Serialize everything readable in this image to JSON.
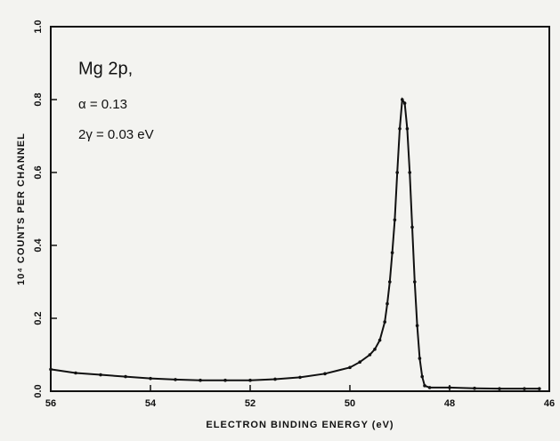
{
  "chart_data": {
    "type": "line",
    "y_label": "10⁴ COUNTS PER CHANNEL",
    "x_label": "ELECTRON BINDING ENERGY (eV)",
    "annotations": [
      "Mg 2p,",
      "α = 0.13",
      "2γ = 0.03 eV"
    ],
    "color": "#111111",
    "xlim": [
      56,
      46
    ],
    "xticks": [
      56,
      54,
      52,
      50,
      48,
      46
    ],
    "ylim": [
      0,
      1
    ],
    "yticks": [
      {
        "value": 0,
        "label": "0.0"
      },
      0.2,
      0.4,
      0.6,
      0.8,
      {
        "value": 1,
        "label": "1.0"
      }
    ],
    "x": [
      56,
      55.5,
      55,
      54.5,
      54,
      53.5,
      53,
      52.5,
      52,
      51.5,
      51,
      50.5,
      50,
      49.8,
      49.6,
      49.5,
      49.4,
      49.3,
      49.25,
      49.2,
      49.15,
      49.1,
      49.05,
      49.0,
      48.95,
      48.9,
      48.85,
      48.8,
      48.75,
      48.7,
      48.65,
      48.6,
      48.55,
      48.5,
      48.4,
      48,
      47.5,
      47,
      46.5,
      46.2
    ],
    "values": [
      0.06,
      0.05,
      0.045,
      0.04,
      0.035,
      0.032,
      0.03,
      0.03,
      0.03,
      0.033,
      0.038,
      0.048,
      0.065,
      0.08,
      0.1,
      0.115,
      0.14,
      0.19,
      0.24,
      0.3,
      0.38,
      0.47,
      0.6,
      0.72,
      0.8,
      0.79,
      0.72,
      0.6,
      0.45,
      0.3,
      0.18,
      0.09,
      0.04,
      0.015,
      0.01,
      0.01,
      0.008,
      0.007,
      0.007,
      0.007
    ]
  }
}
